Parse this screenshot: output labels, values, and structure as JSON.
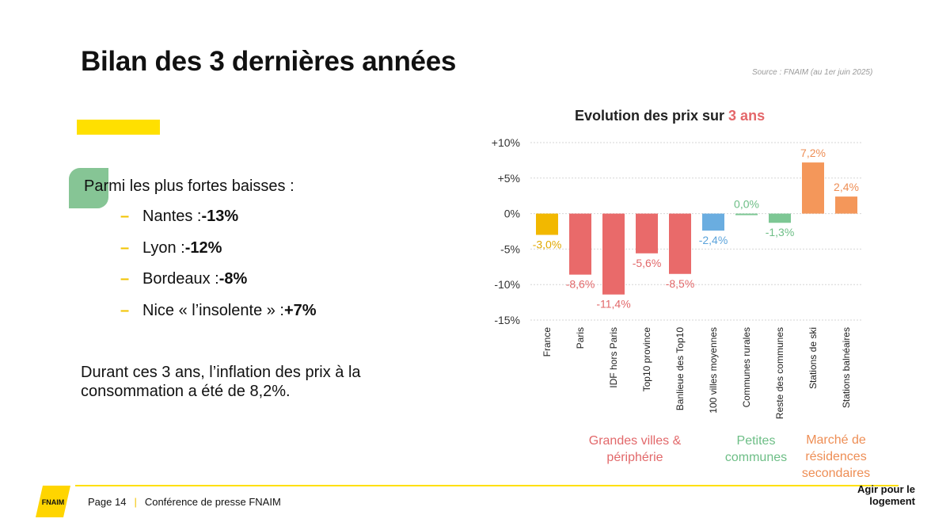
{
  "slide": {
    "title": "Bilan des 3 dernières années",
    "source": "Source : FNAIM (au 1er juin 2025)",
    "intro": "Parmi les plus fortes baisses :",
    "list": [
      {
        "label": "Nantes : ",
        "value": "-13%"
      },
      {
        "label": "Lyon : ",
        "value": "-12%"
      },
      {
        "label": "Bordeaux : ",
        "value": "-8%"
      },
      {
        "label": "Nice « l’insolente » : ",
        "value": "+7%"
      }
    ],
    "note": "Durant ces 3 ans, l’inflation des prix à la consommation a été de 8,2%."
  },
  "chart_title": {
    "main": "Evolution des prix sur ",
    "highlight": "3 ans"
  },
  "chart_data": {
    "type": "bar",
    "title": "Evolution des prix sur 3 ans",
    "categories": [
      "France",
      "Paris",
      "IDF hors Paris",
      "Top10 province",
      "Banlieue des Top10",
      "100 villes moyennes",
      "Communes rurales",
      "Reste des communes",
      "Stations de ski",
      "Stations balnéaires"
    ],
    "values": [
      -3.0,
      -8.6,
      -11.4,
      -5.6,
      -8.5,
      -2.4,
      0.0,
      -1.3,
      7.2,
      2.4
    ],
    "data_labels": [
      "-3,0%",
      "-8,6%",
      "-11,4%",
      "-5,6%",
      "-8,5%",
      "-2,4%",
      "0,0%",
      "-1,3%",
      "7,2%",
      "2,4%"
    ],
    "colors": [
      "#F2B800",
      "#E96A6A",
      "#E96A6A",
      "#E96A6A",
      "#E96A6A",
      "#6AADE0",
      "#7DC794",
      "#7DC794",
      "#F4975A",
      "#F4975A"
    ],
    "label_colors": [
      "#E0A800",
      "#E2686A",
      "#E2686A",
      "#E2686A",
      "#E2686A",
      "#5BA3DB",
      "#6DBE86",
      "#6DBE86",
      "#EE8E55",
      "#EE8E55"
    ],
    "ylim": [
      -15,
      10
    ],
    "yticks": [
      10,
      5,
      0,
      -5,
      -10,
      -15
    ],
    "ytick_labels": [
      "+10%",
      "+5%",
      "0%",
      "-5%",
      "-10%",
      "-15%"
    ],
    "grid": true,
    "groups": [
      {
        "label": "Grandes villes & périphérie",
        "color": "#E2686A"
      },
      {
        "label": "Petites communes",
        "color": "#6DBE86"
      },
      {
        "label": "Marché de résidences secondaires",
        "color": "#EE8E55"
      }
    ]
  },
  "footer": {
    "logo_text": "FNAIM",
    "page": "Page 14",
    "separator": "|",
    "conference": "Conférence de presse FNAIM",
    "slogan": "Agir pour le logement"
  },
  "colors": {
    "accent_yellow": "#FFE000",
    "green_shape": "#86C595"
  }
}
